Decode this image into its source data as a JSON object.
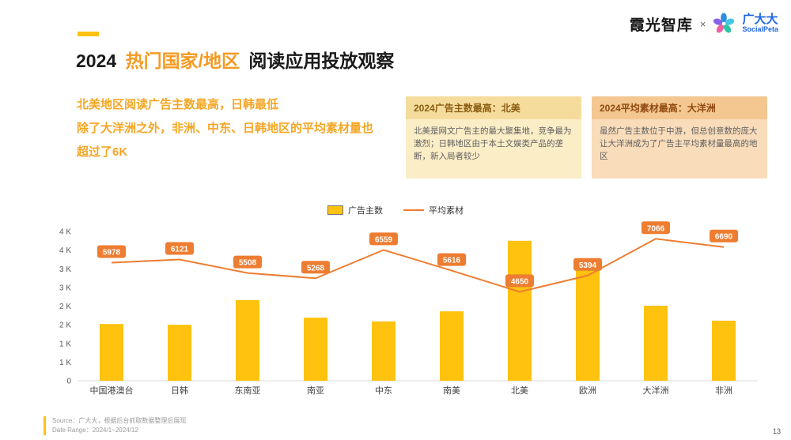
{
  "colors": {
    "accent_yellow": "#FFC20E",
    "accent_orange": "#ED7D31",
    "title_orange": "#F59A23",
    "brand_blue": "#1E66E5"
  },
  "header": {
    "brand_left": "霞光智库",
    "separator": "×",
    "brand_cn": "广大大",
    "brand_en": "SocialPeta"
  },
  "title": {
    "year": "2024",
    "highlight": "热门国家/地区",
    "rest": "阅读应用投放观察"
  },
  "summary": {
    "line1": "北美地区阅读广告主数最高，日韩最低",
    "line2": "除了大洋洲之外，非洲、中东、日韩地区的平均素材量也超过了6K"
  },
  "callouts": [
    {
      "title": "2024广告主数最高：北美",
      "body": "北美是网文广告主的最大聚集地，竞争最为激烈；日韩地区由于本土文娱类产品的垄断，新入局者较少"
    },
    {
      "title": "2024平均素材最高：大洋洲",
      "body": "虽然广告主数位于中游，但总创意数的庞大让大洋洲成为了广告主平均素材量最高的地区"
    }
  ],
  "footer": {
    "source_label": "Source：",
    "source_text": "广大大，根据后台抓取数据整理后展现",
    "date_label": "Date Range：",
    "date_text": "2024/1~2024/12"
  },
  "page_number": "13",
  "chart_data": {
    "type": "combo",
    "categories": [
      "中国港澳台",
      "日韩",
      "东南亚",
      "南亚",
      "中东",
      "南美",
      "北美",
      "欧洲",
      "大洋洲",
      "非洲"
    ],
    "series": [
      {
        "name": "广告主数",
        "type": "bar",
        "axis": "primary",
        "color": "#FFC20E",
        "values": [
          1520,
          1500,
          2160,
          1690,
          1590,
          1860,
          3750,
          3050,
          2010,
          1610
        ]
      },
      {
        "name": "平均素材",
        "type": "line",
        "axis": "secondary",
        "color": "#ED7D31",
        "values": [
          5978,
          6121,
          5508,
          5268,
          6559,
          5616,
          4650,
          5394,
          7066,
          6690
        ]
      }
    ],
    "primary_axis": {
      "min": 0,
      "max": 4000,
      "tick_step": 500,
      "tick_labels": [
        "0",
        "1 K",
        "1 K",
        "2 K",
        "2 K",
        "3 K",
        "3 K",
        "4 K",
        "4 K"
      ]
    },
    "secondary_axis": {
      "min": 600,
      "max": 7400,
      "visible": false
    },
    "legend_position": "top-center",
    "gridlines": false
  }
}
